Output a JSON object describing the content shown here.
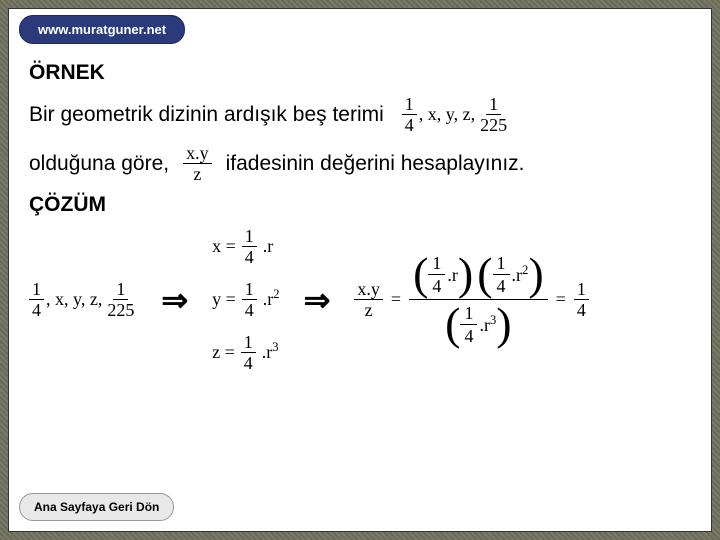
{
  "url": "www.muratguner.net",
  "headings": {
    "ornek": "ÖRNEK",
    "cozum": "ÇÖZÜM"
  },
  "problem": {
    "text1": "Bir geometrik dizinin ardışık beş terimi",
    "text2a": "olduğuna göre,",
    "text2b": "ifadesinin değerini hesaplayınız."
  },
  "sequence": {
    "f1_num": "1",
    "f1_den": "4",
    "mid": ", x, y, z,",
    "f2_num": "1",
    "f2_den": "225"
  },
  "expr": {
    "num": "x.y",
    "den": "z"
  },
  "steps": {
    "x": {
      "lhs": "x =",
      "num": "1",
      "den": "4",
      "tail": ".r"
    },
    "y": {
      "lhs": "y =",
      "num": "1",
      "den": "4",
      "tail": ".r",
      "exp": "2"
    },
    "z": {
      "lhs": "z =",
      "num": "1",
      "den": "4",
      "tail": ".r",
      "exp": "3"
    }
  },
  "result": {
    "lhs_num": "x.y",
    "lhs_den": "z",
    "eq": "=",
    "p1_num": "1",
    "p1_den": "4",
    "p1_tail": ".r",
    "p2_num": "1",
    "p2_den": "4",
    "p2_tail": ".r",
    "p2_exp": "2",
    "bot_num": "1",
    "bot_den": "4",
    "bot_tail": ".r",
    "bot_exp": "3",
    "final_num": "1",
    "final_den": "4"
  },
  "arrow": "⇒",
  "back": "Ana Sayfaya Geri Dön"
}
